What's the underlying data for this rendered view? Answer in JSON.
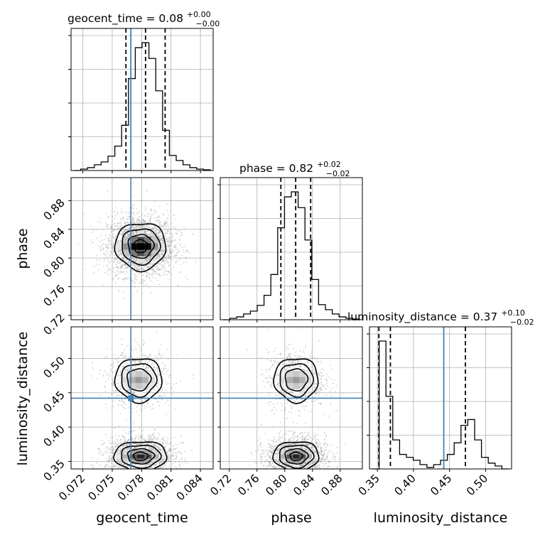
{
  "chart_data": {
    "type": "corner",
    "grid": true,
    "colors": {
      "truth": "#4682b4",
      "hist": "#000000",
      "points": "#9a9a9a",
      "grid": "#b0b0b0"
    },
    "parameters": [
      {
        "name": "geocent_time",
        "axis_label": "geocent_time",
        "range": [
          0.0708,
          0.0853
        ],
        "ticks": [
          0.072,
          0.075,
          0.078,
          0.081,
          0.084
        ],
        "tick_labels": [
          "0.072",
          "0.075",
          "0.078",
          "0.081",
          "0.084"
        ],
        "truth": 0.0769,
        "quantiles": [
          0.0764,
          0.0784,
          0.0804
        ],
        "title_prefix": "geocent_time = 0.08",
        "title_plus": "+0.00",
        "title_minus": "−0.00",
        "hist_counts": [
          0,
          2,
          4,
          8,
          12,
          20,
          34,
          63,
          128,
          171,
          178,
          156,
          111,
          56,
          21,
          14,
          8,
          4,
          2,
          1
        ]
      },
      {
        "name": "phase",
        "axis_label": "phase",
        "range": [
          0.707,
          0.912
        ],
        "ticks": [
          0.72,
          0.76,
          0.8,
          0.84,
          0.88
        ],
        "tick_labels": [
          "0.72",
          "0.76",
          "0.80",
          "0.84",
          "0.88"
        ],
        "truth": null,
        "quantiles": [
          0.7944,
          0.8158,
          0.8374
        ],
        "title_prefix": "phase = 0.82",
        "title_plus": "+0.02",
        "title_minus": "−0.02",
        "hist_counts": [
          0,
          2,
          4,
          8,
          12,
          20,
          34,
          63,
          128,
          171,
          178,
          156,
          111,
          56,
          21,
          14,
          8,
          4,
          2,
          1
        ]
      },
      {
        "name": "luminosity_distance",
        "axis_label": "luminosity_distance",
        "range": [
          0.339,
          0.536
        ],
        "ticks": [
          0.35,
          0.4,
          0.45,
          0.5
        ],
        "tick_labels": [
          "0.35",
          "0.40",
          "0.45",
          "0.50"
        ],
        "truth": 0.442,
        "quantiles": [
          0.352,
          0.368,
          0.472
        ],
        "title_prefix": "luminosity_distance = 0.37",
        "title_plus": "+0.10",
        "title_minus": "−0.02",
        "hist_counts": [
          0,
          88,
          50,
          20,
          10,
          8,
          6,
          3,
          1,
          3,
          6,
          10,
          18,
          30,
          34,
          20,
          8,
          4,
          2,
          0
        ]
      }
    ],
    "row_ranges": [
      {
        "param": "phase",
        "range": [
          0.714,
          0.912
        ],
        "ticks": [
          0.72,
          0.76,
          0.8,
          0.84,
          0.88
        ],
        "tick_labels": [
          "0.72",
          "0.76",
          "0.80",
          "0.84",
          "0.88"
        ]
      },
      {
        "param": "luminosity_distance",
        "range": [
          0.339,
          0.546
        ],
        "ticks": [
          0.35,
          0.4,
          0.45,
          0.5
        ],
        "tick_labels": [
          "0.35",
          "0.40",
          "0.45",
          "0.50"
        ]
      }
    ],
    "blobs": {
      "geocent_time-phase": [
        {
          "cx": 0.0779,
          "cy": 0.8165,
          "sx": 0.0013,
          "sy": 0.0165,
          "w": 1
        }
      ],
      "geocent_time-luminosity_distance": [
        {
          "cx": 0.0779,
          "cy": 0.3575,
          "sx": 0.00135,
          "sy": 0.011,
          "w": 0.68
        },
        {
          "cx": 0.0777,
          "cy": 0.469,
          "sx": 0.0012,
          "sy": 0.016,
          "w": 0.32
        }
      ],
      "phase-luminosity_distance": [
        {
          "cx": 0.8165,
          "cy": 0.3575,
          "sx": 0.0165,
          "sy": 0.011,
          "w": 0.68
        },
        {
          "cx": 0.8165,
          "cy": 0.469,
          "sx": 0.016,
          "sy": 0.016,
          "w": 0.32
        }
      ]
    }
  }
}
